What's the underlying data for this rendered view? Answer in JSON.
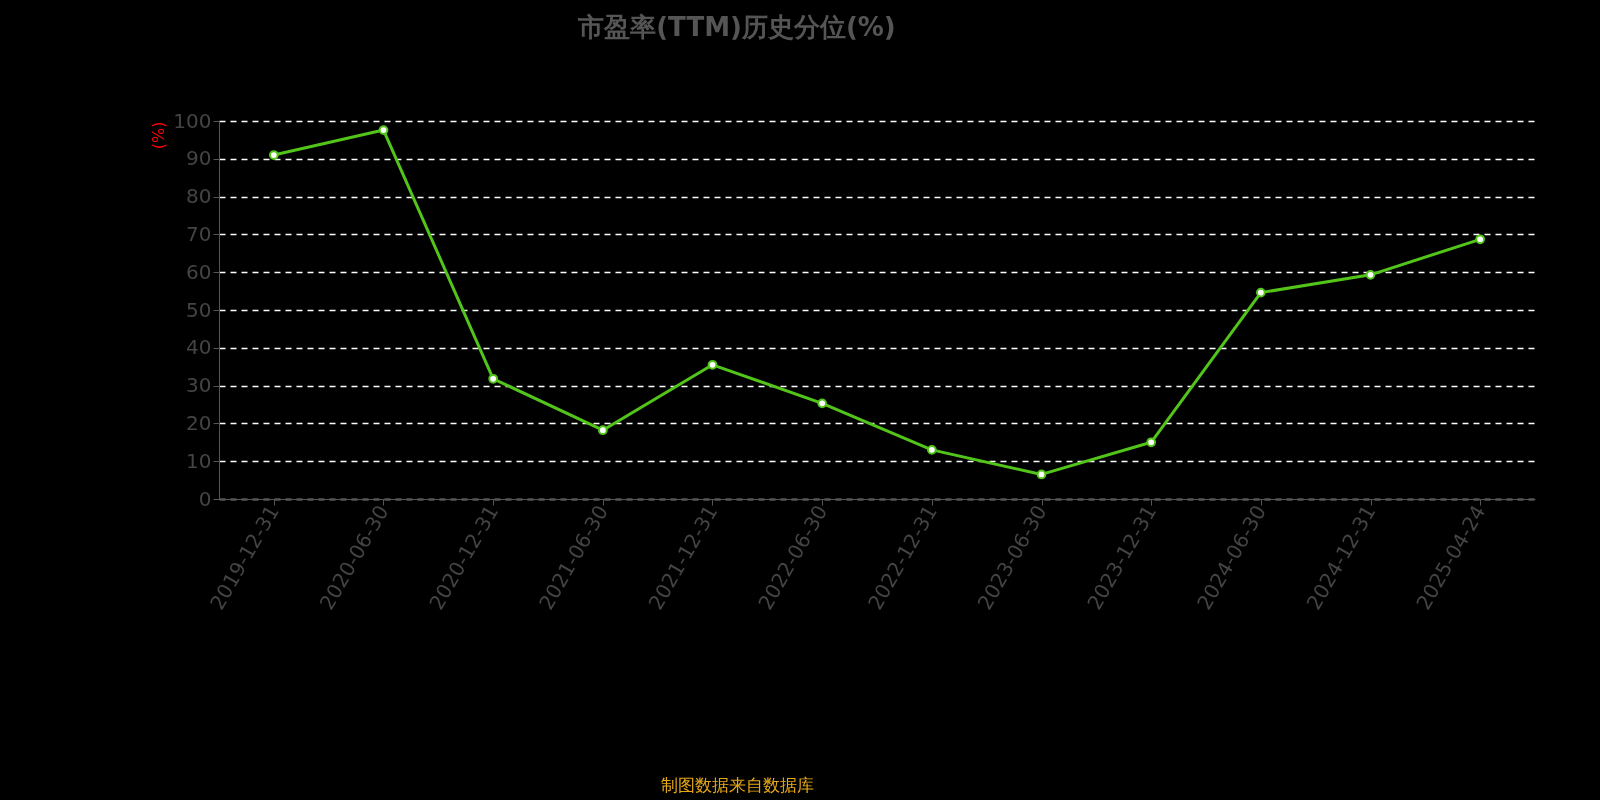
{
  "chart_data": {
    "type": "line",
    "title": "市盈率(TTM)历史分位(%)",
    "ylabel": "(%)",
    "categories": [
      "2019-12-31",
      "2020-06-30",
      "2020-12-31",
      "2021-06-30",
      "2021-12-31",
      "2022-06-30",
      "2022-12-31",
      "2023-06-30",
      "2023-12-31",
      "2024-06-30",
      "2024-12-31",
      "2025-04-24"
    ],
    "series": [
      {
        "color": "#52c41a",
        "values": [
          91.0,
          97.6,
          31.8,
          18.2,
          35.5,
          25.3,
          13.0,
          6.5,
          15.0,
          54.6,
          59.3,
          68.7
        ]
      }
    ],
    "ylim": [
      0,
      100
    ],
    "yticks": [
      0,
      10,
      20,
      30,
      40,
      50,
      60,
      70,
      80,
      90,
      100
    ],
    "grid": "y",
    "marker": "circle",
    "line_style": "solid",
    "annotations": [
      "制图数据来自数据库"
    ]
  }
}
